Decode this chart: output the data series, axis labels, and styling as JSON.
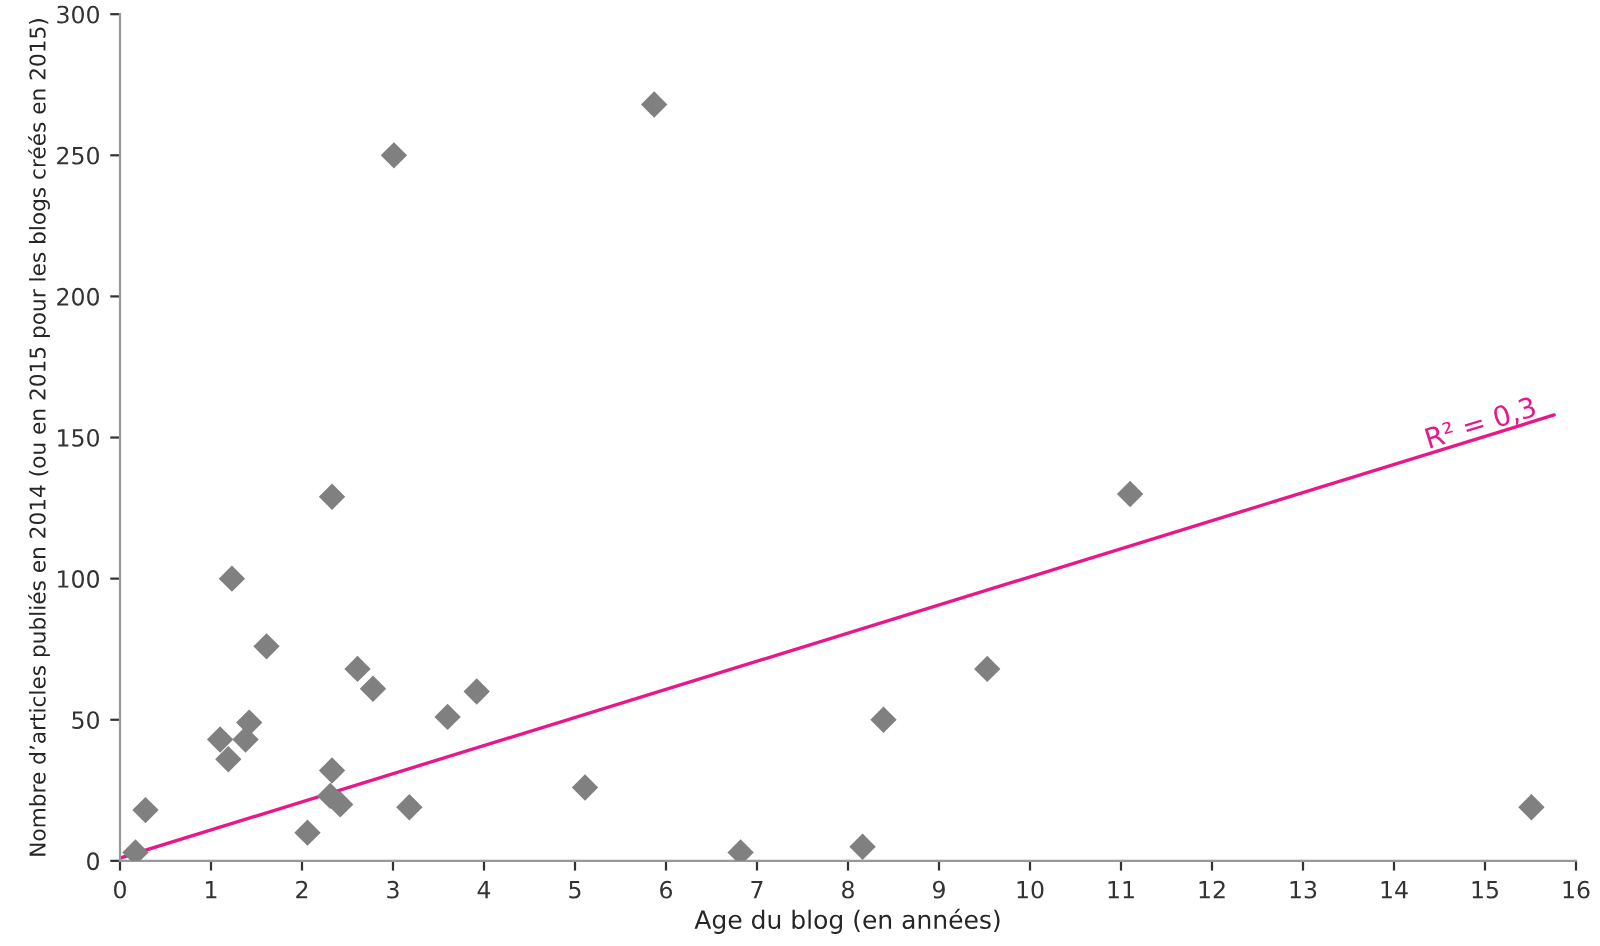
{
  "chart_data": {
    "type": "scatter",
    "xlabel": "Age du blog (en années)",
    "ylabel": "Nombre d’articles publiés en 2014 (ou en 2015 pour les blogs créés en 2015)",
    "series": [
      {
        "color": "#808080",
        "marker": "diamond",
        "x": [
          0.17,
          0.28,
          1.1,
          1.19,
          1.23,
          1.38,
          1.42,
          1.61,
          2.06,
          2.31,
          2.33,
          2.33,
          2.42,
          2.61,
          2.78,
          3.01,
          3.18,
          3.6,
          3.92,
          5.11,
          5.87,
          6.82,
          8.16,
          8.39,
          9.53,
          11.1,
          15.51
        ],
        "values": [
          3,
          18,
          43,
          36,
          100,
          43,
          49,
          76,
          10,
          23,
          32,
          129,
          20,
          68,
          61,
          250,
          19,
          51,
          60,
          26,
          268,
          3,
          5,
          50,
          68,
          130,
          19
        ]
      },
      {
        "type": "line",
        "color": "#e8178a",
        "marker": "none",
        "line_style": "solid",
        "x": [
          0,
          15.76
        ],
        "values": [
          1,
          158
        ]
      }
    ],
    "annotations": [
      {
        "text": "R² = 0,3",
        "x": 15,
        "y": 150
      }
    ],
    "xlim": [
      0,
      16
    ],
    "xticks": [
      0,
      1,
      2,
      3,
      4,
      5,
      6,
      7,
      8,
      9,
      10,
      11,
      12,
      13,
      14,
      15,
      16
    ],
    "ylim": [
      0,
      300
    ],
    "yticks": [
      0,
      50,
      100,
      150,
      200,
      250,
      300
    ],
    "grid": false,
    "legend": false
  }
}
